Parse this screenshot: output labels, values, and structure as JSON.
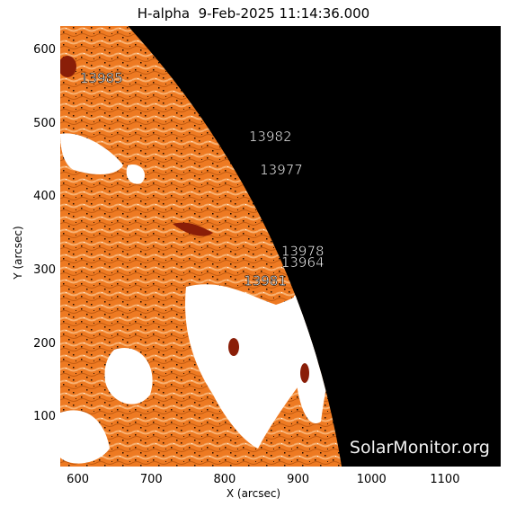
{
  "title": "H-alpha  9-Feb-2025 11:14:36.000",
  "x_axis": {
    "label": "X (arcsec)",
    "range": [
      576,
      1176
    ],
    "ticks": [
      {
        "value": 600,
        "label": "600"
      },
      {
        "value": 700,
        "label": "700"
      },
      {
        "value": 800,
        "label": "800"
      },
      {
        "value": 900,
        "label": "900"
      },
      {
        "value": 1000,
        "label": "1000"
      },
      {
        "value": 1100,
        "label": "1100"
      }
    ]
  },
  "y_axis": {
    "label": "Y (arcsec)",
    "range": [
      33,
      633
    ],
    "ticks": [
      {
        "value": 100,
        "label": "100"
      },
      {
        "value": 200,
        "label": "200"
      },
      {
        "value": 300,
        "label": "300"
      },
      {
        "value": 400,
        "label": "400"
      },
      {
        "value": 500,
        "label": "500"
      },
      {
        "value": 600,
        "label": "600"
      }
    ]
  },
  "regions": [
    {
      "label": "13985",
      "x": 603,
      "y": 556
    },
    {
      "label": "13982",
      "x": 833,
      "y": 476
    },
    {
      "label": "13977",
      "x": 848,
      "y": 431
    },
    {
      "label": "13978",
      "x": 877,
      "y": 320
    },
    {
      "label": "13964",
      "x": 877,
      "y": 305
    },
    {
      "label": "13981",
      "x": 826,
      "y": 280
    }
  ],
  "watermark": "SolarMonitor.org",
  "colors": {
    "disk": "#ee7a22",
    "disk_light": "#f6a25a",
    "plage": "#ffffff",
    "sky": "#000000",
    "sunspot": "#8a1e08"
  }
}
